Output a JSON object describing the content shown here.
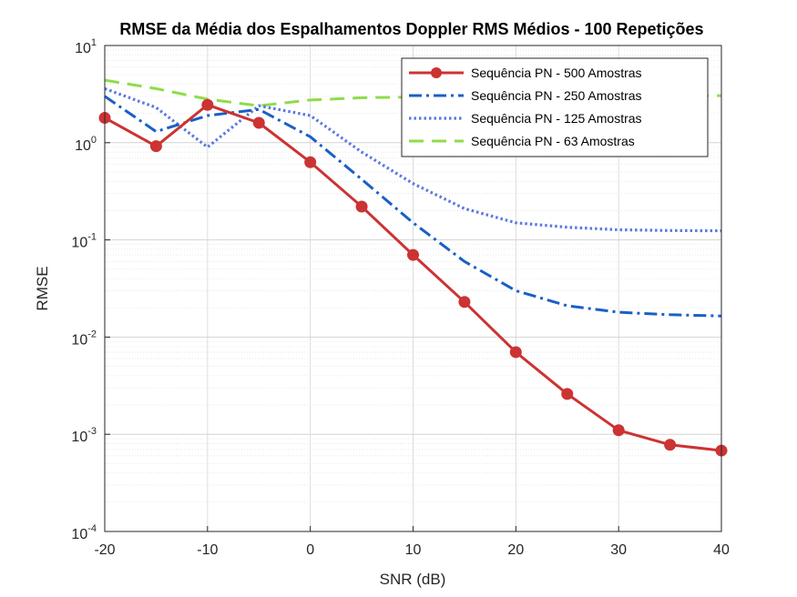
{
  "chart_data": {
    "type": "line",
    "title": "RMSE da Média dos Espalhamentos Doppler RMS Médios - 100 Repetições",
    "xlabel": "SNR (dB)",
    "ylabel": "RMSE",
    "xlim": [
      -20,
      40
    ],
    "ylim": [
      0.0001,
      10
    ],
    "yscale": "log",
    "grid": true,
    "legend_position": "top-right",
    "x_ticks": [
      "-20",
      "-10",
      "0",
      "10",
      "20",
      "30",
      "40"
    ],
    "y_tick_base": "10",
    "y_tick_exponents": [
      "-4",
      "-3",
      "-2",
      "-1",
      "0",
      "1"
    ],
    "x": [
      -20,
      -15,
      -10,
      -5,
      0,
      5,
      10,
      15,
      20,
      25,
      30,
      35,
      40
    ],
    "series": [
      {
        "name": "Sequência PN - 500 Amostras",
        "color": "#cc3333",
        "style": "solid-markers",
        "values": [
          1.8,
          0.92,
          2.45,
          1.6,
          0.63,
          0.22,
          0.07,
          0.023,
          0.007,
          0.0026,
          0.0011,
          0.00078,
          0.00068
        ]
      },
      {
        "name": "Sequência PN - 250 Amostras",
        "color": "#1a5fc8",
        "style": "dashdot",
        "values": [
          3.0,
          1.3,
          1.9,
          2.2,
          1.15,
          0.42,
          0.15,
          0.06,
          0.03,
          0.021,
          0.018,
          0.017,
          0.0165
        ]
      },
      {
        "name": "Sequência PN - 125 Amostras",
        "color": "#5b78e0",
        "style": "dotted",
        "values": [
          3.6,
          2.3,
          0.9,
          2.4,
          1.9,
          0.8,
          0.38,
          0.21,
          0.15,
          0.135,
          0.127,
          0.125,
          0.124
        ]
      },
      {
        "name": "Sequência PN - 63 Amostras",
        "color": "#8fdc4a",
        "style": "dashed",
        "values": [
          4.4,
          3.6,
          2.8,
          2.4,
          2.75,
          2.9,
          2.95,
          3.0,
          3.05,
          3.05,
          3.05,
          3.05,
          3.05
        ]
      }
    ]
  }
}
